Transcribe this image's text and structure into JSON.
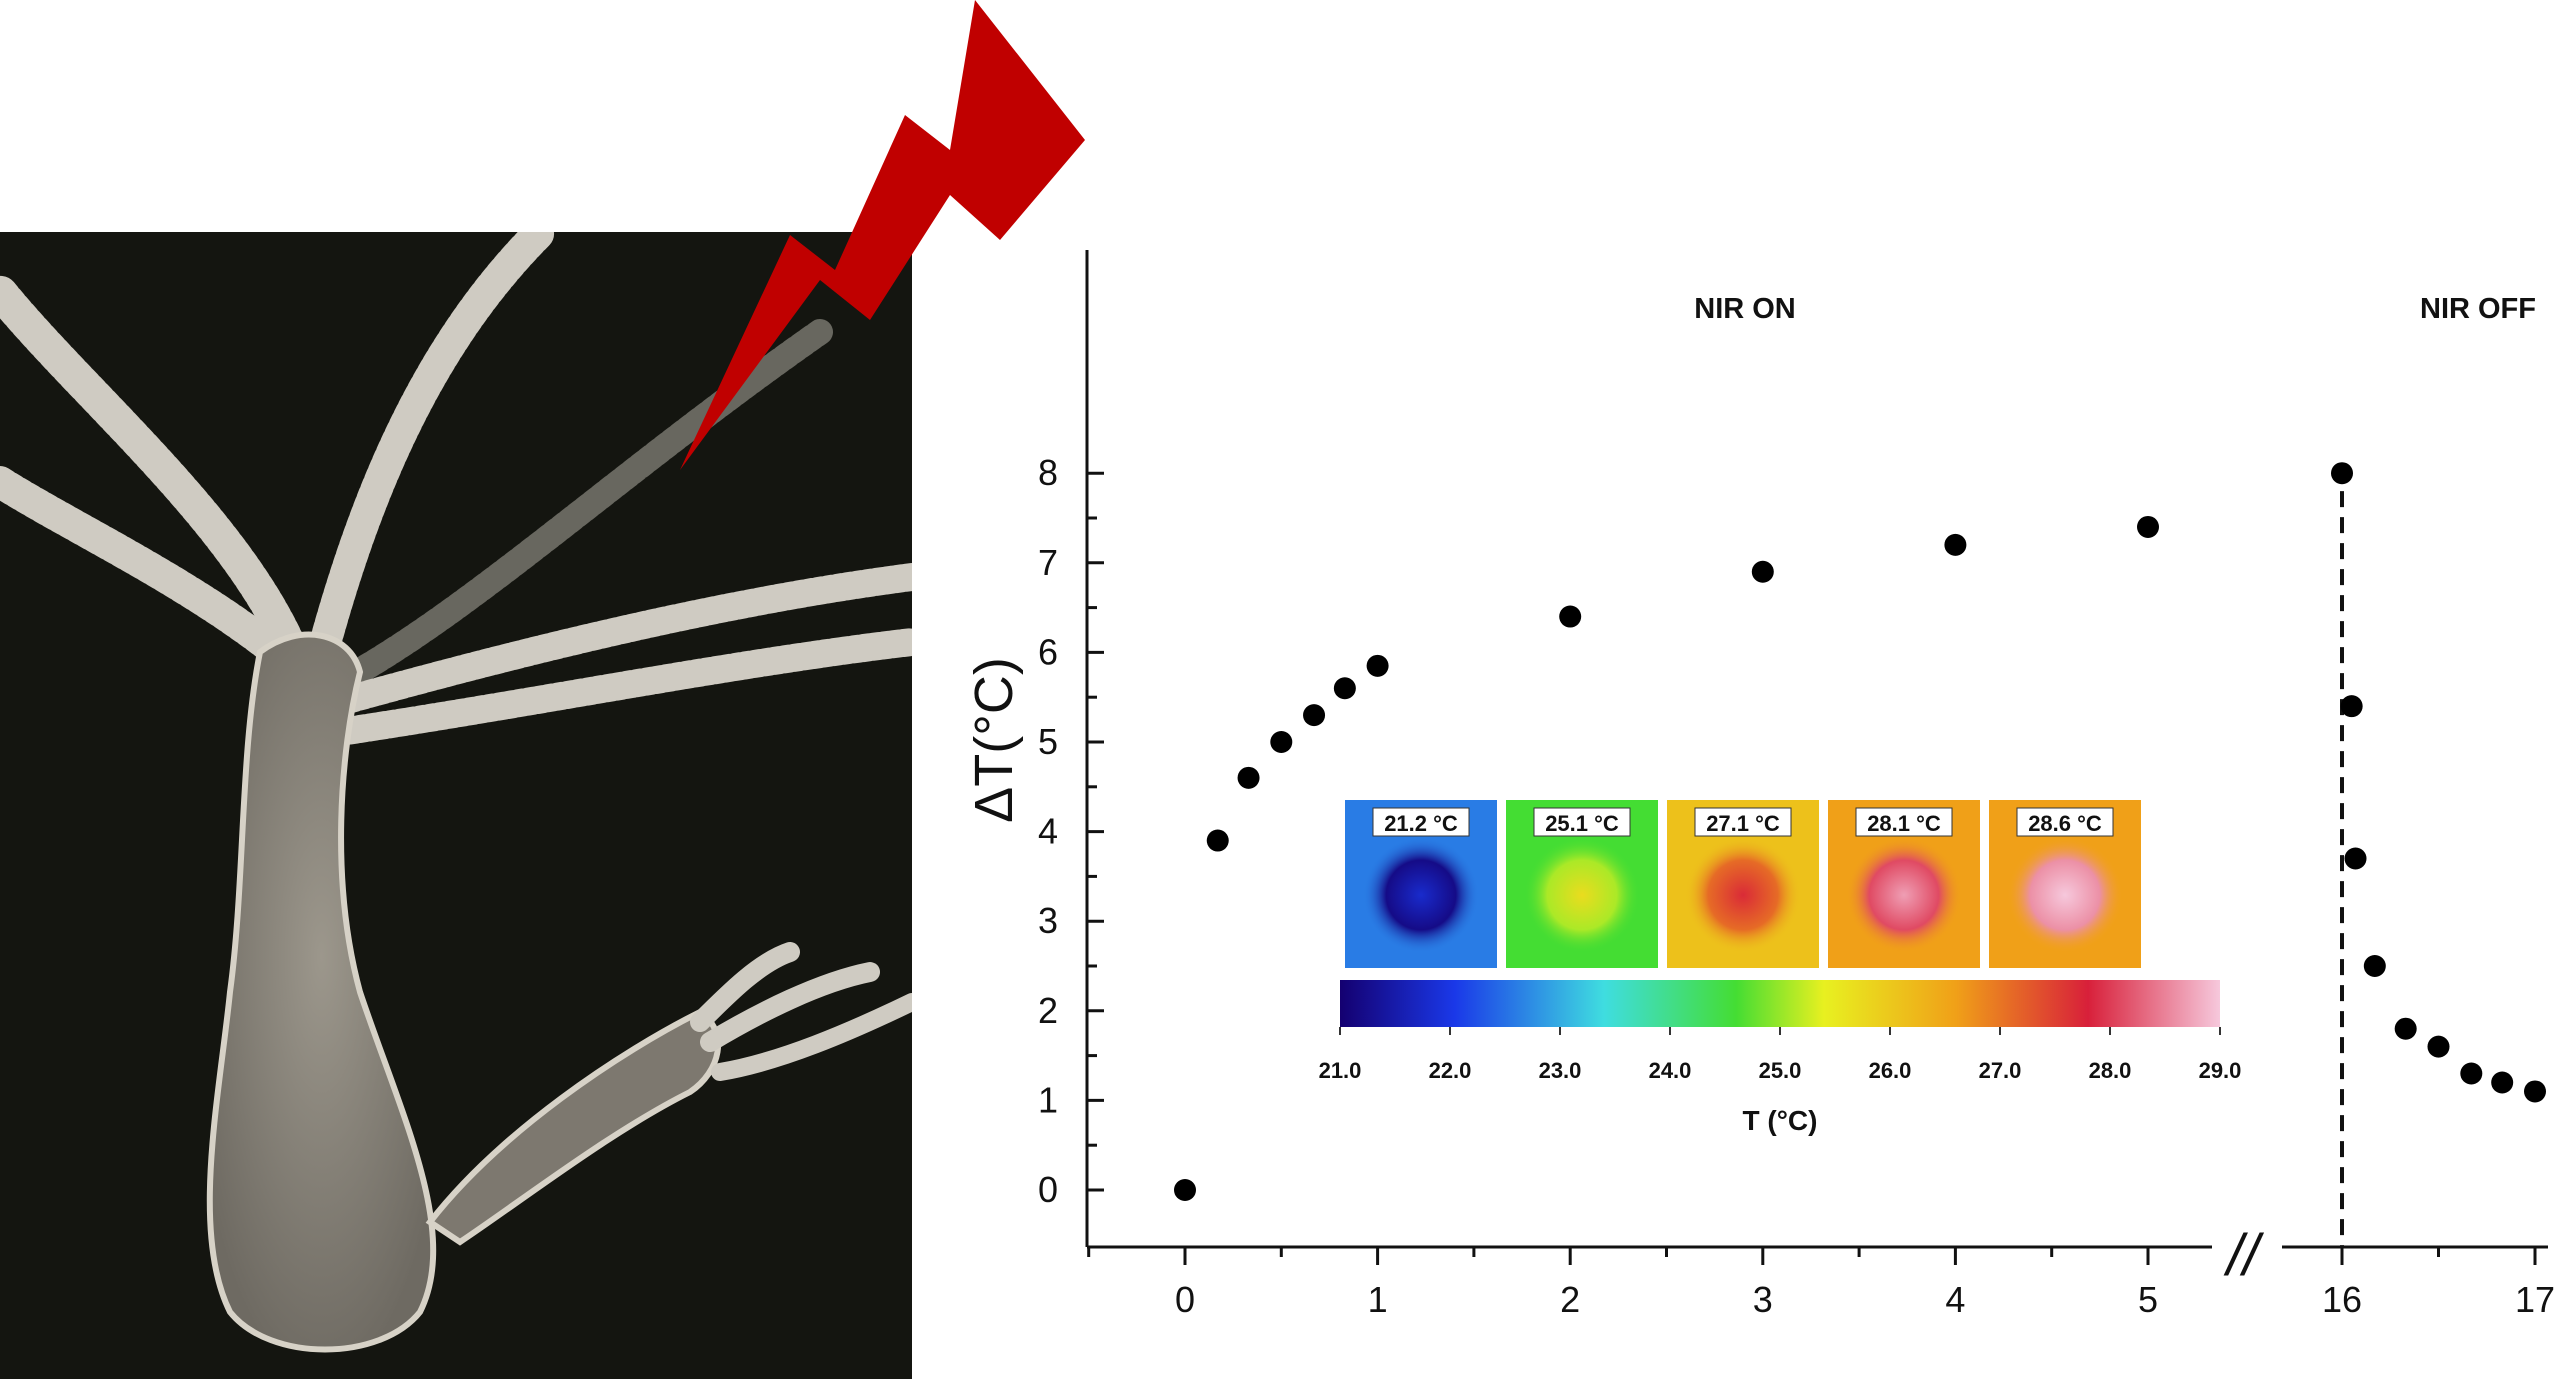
{
  "chart_data": {
    "type": "scatter",
    "xlabel": "",
    "ylabel": "ΔT(°C)",
    "ylim": [
      0,
      8
    ],
    "xlim_segments": [
      [
        -0.5,
        5.3
      ],
      [
        15.8,
        17.1
      ]
    ],
    "axis_break_glyph": "//",
    "x_ticks": [
      0,
      1,
      2,
      3,
      4,
      5,
      16,
      17
    ],
    "y_ticks": [
      0,
      1,
      2,
      3,
      4,
      5,
      6,
      7,
      8
    ],
    "grid": false,
    "x": [
      0,
      0.17,
      0.33,
      0.5,
      0.67,
      0.83,
      1,
      2,
      3,
      4,
      5,
      16,
      16.05,
      16.07,
      16.17,
      16.33,
      16.5,
      16.67,
      16.83,
      17
    ],
    "y": [
      0,
      3.9,
      4.6,
      5.0,
      5.3,
      5.6,
      5.85,
      6.4,
      6.9,
      7.2,
      7.4,
      8.0,
      5.4,
      3.7,
      2.5,
      1.8,
      1.6,
      1.3,
      1.2,
      1.1
    ],
    "annotations": [
      {
        "text": "NIR ON",
        "x": 3,
        "y": 7.9
      },
      {
        "text": "NIR OFF",
        "x": 16.8,
        "y": 7.9
      }
    ],
    "nir_off_line_x": 16,
    "inset": {
      "thermal_images": [
        {
          "label": "21.2 °C",
          "value": 21.2
        },
        {
          "label": "25.1 °C",
          "value": 25.1
        },
        {
          "label": "27.1 °C",
          "value": 27.1
        },
        {
          "label": "28.1 °C",
          "value": 28.1
        },
        {
          "label": "28.6 °C",
          "value": 28.6
        }
      ],
      "colorbar_ticks": [
        "21.0",
        "22.0",
        "23.0",
        "24.0",
        "25.0",
        "26.0",
        "27.0",
        "28.0",
        "29.0"
      ],
      "colorbar_range": [
        21.0,
        29.0
      ],
      "colorbar_label": "T (°C)"
    }
  },
  "colors": {
    "marker": "#000000",
    "bolt": "#c00000",
    "photo_bg": "#141510",
    "polyp_body": "#8f8a80",
    "tentacle": "#cfcbc2"
  },
  "icons": [
    "lightning-bolt-icon",
    "hydra-polyp-photo"
  ]
}
